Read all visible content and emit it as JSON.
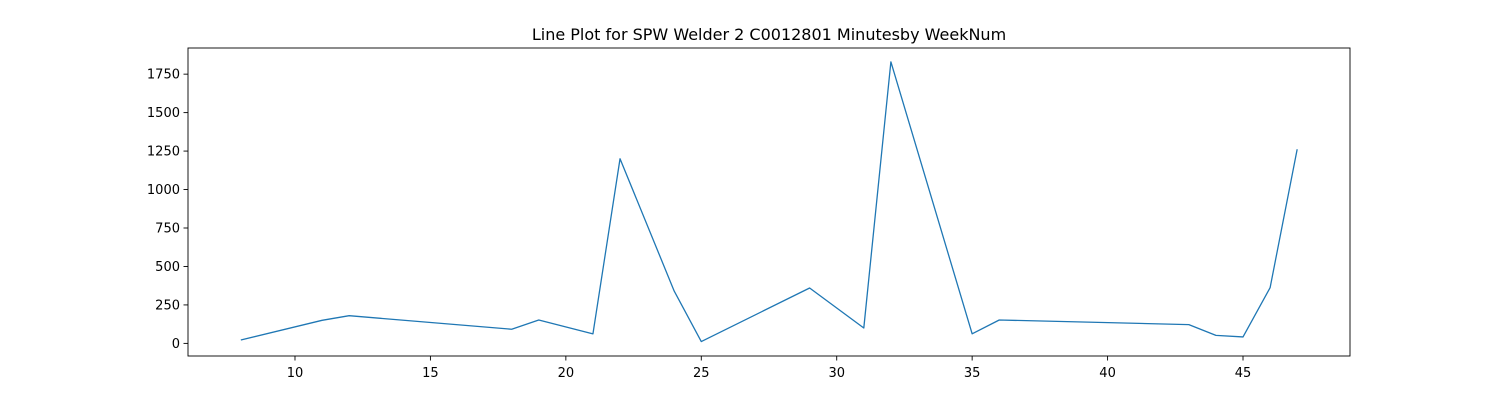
{
  "chart_data": {
    "type": "line",
    "title": "Line Plot for SPW Welder 2 C0012801 Minutesby WeekNum",
    "xlabel": "",
    "ylabel": "",
    "xlim": [
      6.05,
      48.95
    ],
    "ylim": [
      -82,
      1920
    ],
    "xticks": [
      10,
      15,
      20,
      25,
      30,
      35,
      40,
      45
    ],
    "yticks": [
      0,
      250,
      500,
      750,
      1000,
      1250,
      1500,
      1750
    ],
    "grid": false,
    "legend": "none",
    "line_color": "#1f77b4",
    "series": [
      {
        "x": [
          8,
          11,
          12,
          18,
          19,
          21,
          22,
          24,
          25,
          29,
          31,
          32,
          35,
          36,
          43,
          44,
          45,
          46,
          47
        ],
        "y": [
          22,
          150,
          180,
          92,
          152,
          62,
          1200,
          340,
          12,
          360,
          100,
          1830,
          62,
          152,
          122,
          52,
          42,
          362,
          1262
        ]
      }
    ]
  }
}
